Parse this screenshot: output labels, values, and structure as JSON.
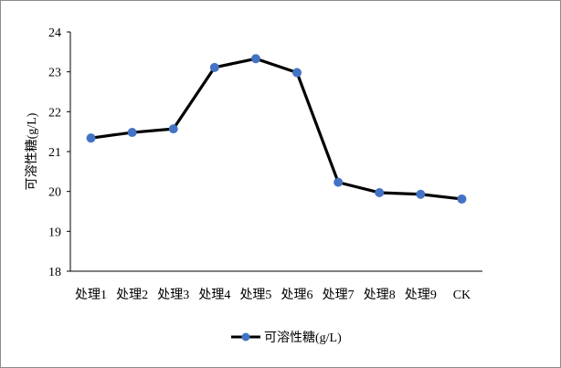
{
  "chart_data": {
    "type": "line",
    "title": "",
    "xlabel": "",
    "ylabel": "可溶性糖(g/L)",
    "categories": [
      "处理1",
      "处理2",
      "处理3",
      "处理4",
      "处理5",
      "处理6",
      "处理7",
      "处理8",
      "处理9",
      "CK"
    ],
    "ylim": [
      18,
      24
    ],
    "yticks": [
      "18",
      "19",
      "20",
      "21",
      "22",
      "23",
      "24"
    ],
    "grid": false,
    "legend_position": "bottom",
    "series": [
      {
        "name": "可溶性糖(g/L)",
        "values": [
          21.34,
          21.48,
          21.57,
          23.11,
          23.33,
          22.98,
          20.23,
          19.97,
          19.93,
          19.81
        ],
        "line_color": "#000000",
        "marker_color": "#4472C4"
      }
    ]
  }
}
